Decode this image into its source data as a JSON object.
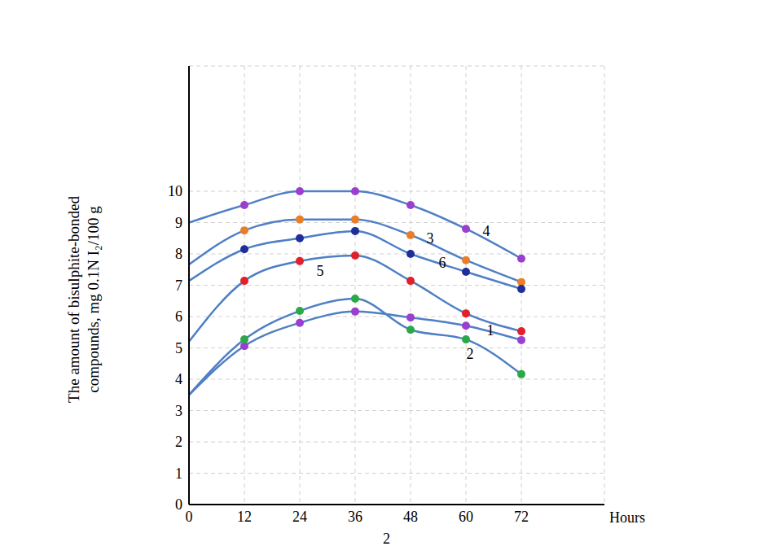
{
  "chart_data": {
    "type": "line",
    "xlabel": "Hours",
    "ylabel": [
      "The amount of bisulphite-bonded",
      "compounds, mg 0.1N I₂/100 g"
    ],
    "caption": "2",
    "x": [
      0,
      12,
      24,
      36,
      48,
      60,
      72
    ],
    "xlim": [
      0,
      90
    ],
    "xticks": [
      0,
      12,
      24,
      36,
      48,
      60,
      72
    ],
    "ylim": [
      0,
      14
    ],
    "yticks": [
      0,
      1,
      2,
      3,
      4,
      5,
      6,
      7,
      8,
      9,
      10
    ],
    "grid": true,
    "marker": "circle",
    "series": [
      {
        "name": "4",
        "color": "#4f7fc4",
        "colors": [
          null,
          "#9b3fd0",
          "#9b3fd0",
          "#9b3fd0",
          "#9b3fd0",
          "#9b3fd0",
          "#9b3fd0"
        ],
        "values": [
          9.0,
          9.56,
          10.0,
          10.0,
          9.56,
          8.8,
          7.85
        ]
      },
      {
        "name": "3",
        "color": "#4f7fc4",
        "colors": [
          null,
          "#e87d2a",
          "#e87d2a",
          "#e87d2a",
          "#e87d2a",
          "#e87d2a",
          "#e87d2a"
        ],
        "values": [
          7.66,
          8.75,
          9.1,
          9.1,
          8.6,
          7.8,
          7.1
        ]
      },
      {
        "name": "6",
        "color": "#4f7fc4",
        "colors": [
          null,
          "#1f2f9a",
          "#1f2f9a",
          "#1f2f9a",
          "#1f2f9a",
          "#1f2f9a",
          "#1f2f9a"
        ],
        "values": [
          7.14,
          8.15,
          8.5,
          8.73,
          8.0,
          7.43,
          6.88
        ]
      },
      {
        "name": "5",
        "color": "#4f7fc4",
        "colors": [
          null,
          "#e0202a",
          "#e0202a",
          "#e0202a",
          "#e0202a",
          "#e0202a",
          "#e0202a"
        ],
        "values": [
          5.2,
          7.14,
          7.77,
          7.95,
          7.14,
          6.1,
          5.53
        ]
      },
      {
        "name": "1",
        "color": "#4f7fc4",
        "colors": [
          null,
          "#9b3fd0",
          "#9b3fd0",
          "#9b3fd0",
          "#9b3fd0",
          "#9b3fd0",
          "#9b3fd0"
        ],
        "values": [
          3.5,
          5.06,
          5.8,
          6.16,
          5.97,
          5.71,
          5.25
        ]
      },
      {
        "name": "2",
        "color": "#4f7fc4",
        "colors": [
          null,
          "#2aa84a",
          "#2aa84a",
          "#2aa84a",
          "#2aa84a",
          "#2aa84a",
          "#2aa84a"
        ],
        "values": [
          3.5,
          5.27,
          6.18,
          6.57,
          5.58,
          5.27,
          4.16
        ]
      }
    ]
  }
}
